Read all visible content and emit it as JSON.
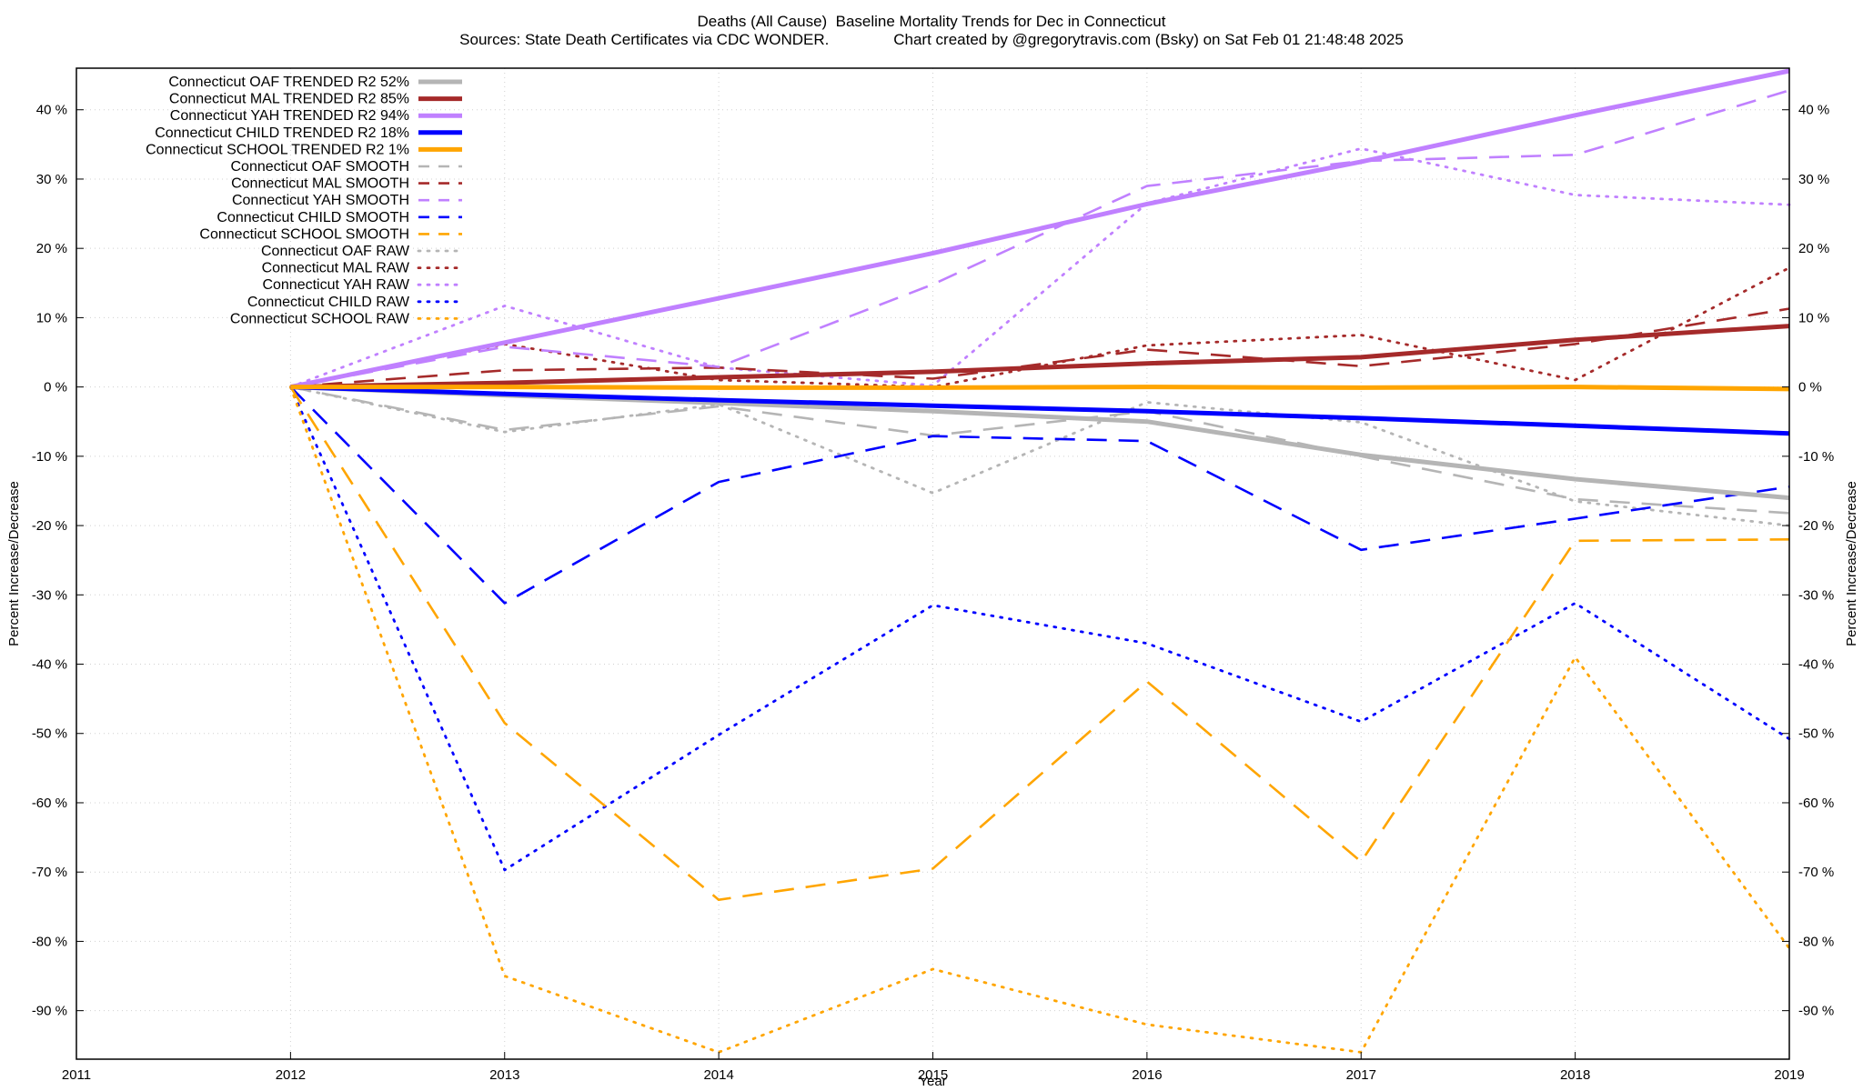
{
  "title": "Deaths (All Cause)  Baseline Mortality Trends for Dec in Connecticut",
  "subtitle": "Sources: State Death Certificates via CDC WONDER.               Chart created by @gregorytravis.com (Bsky) on Sat Feb 01 21:48:48 2025",
  "chart_data": {
    "type": "line",
    "xlabel": "Year",
    "ylabel": "Percent Increase/Decrease",
    "y2label": "Percent Increase/Decrease",
    "xlim": [
      2011,
      2019
    ],
    "ylim": [
      -97,
      46
    ],
    "xticks": [
      "2011",
      "2012",
      "2013",
      "2014",
      "2015",
      "2016",
      "2017",
      "2018",
      "2019"
    ],
    "yticks": [
      "40 %",
      "30 %",
      "20 %",
      "10 %",
      "0 %",
      "-10 %",
      "-20 %",
      "-30 %",
      "-40 %",
      "-50 %",
      "-60 %",
      "-70 %",
      "-80 %",
      "-90 %"
    ],
    "ytick_values": [
      40,
      30,
      20,
      10,
      0,
      -10,
      -20,
      -30,
      -40,
      -50,
      -60,
      -70,
      -80,
      -90
    ],
    "grid": true,
    "legend_position": "top-left",
    "x": [
      2012,
      2013,
      2014,
      2015,
      2016,
      2017,
      2018,
      2019
    ],
    "series": [
      {
        "name": "Connecticut OAF TRENDED R2  52%",
        "style": "solid",
        "color": "#b5b5b5",
        "values": [
          0,
          -1.2,
          -2.3,
          -3.5,
          -5.0,
          -9.8,
          -13.3,
          -16.0
        ]
      },
      {
        "name": "Connecticut MAL TRENDED R2  85%",
        "style": "solid",
        "color": "#a52a2a",
        "values": [
          0,
          0.6,
          1.4,
          2.2,
          3.4,
          4.3,
          6.8,
          8.8
        ]
      },
      {
        "name": "Connecticut YAH TRENDED R2  94%",
        "style": "solid",
        "color": "#c080ff",
        "values": [
          0,
          6.4,
          12.8,
          19.3,
          26.4,
          32.5,
          39.2,
          45.6
        ]
      },
      {
        "name": "Connecticut CHILD TRENDED R2  18%",
        "style": "solid",
        "color": "#0000ff",
        "values": [
          0,
          -1.0,
          -1.9,
          -2.7,
          -3.5,
          -4.5,
          -5.6,
          -6.7
        ]
      },
      {
        "name": "Connecticut SCHOOL TRENDED R2   1%",
        "style": "solid",
        "color": "#ffa500",
        "values": [
          0,
          0.0,
          -0.1,
          -0.1,
          0.0,
          -0.1,
          0.0,
          -0.3
        ]
      },
      {
        "name": "Connecticut OAF SMOOTH",
        "style": "dashed",
        "color": "#b5b5b5",
        "values": [
          0,
          -6.2,
          -2.8,
          -7.0,
          -3.5,
          -10.0,
          -16.2,
          -18.2
        ]
      },
      {
        "name": "Connecticut MAL SMOOTH",
        "style": "dashed",
        "color": "#a52a2a",
        "values": [
          0,
          2.4,
          2.8,
          1.2,
          5.4,
          3.0,
          6.2,
          11.3
        ]
      },
      {
        "name": "Connecticut YAH SMOOTH",
        "style": "dashed",
        "color": "#c080ff",
        "values": [
          0,
          5.8,
          2.9,
          14.8,
          29.0,
          32.6,
          33.5,
          42.8
        ]
      },
      {
        "name": "Connecticut CHILD SMOOTH",
        "style": "dashed",
        "color": "#0000ff",
        "values": [
          0,
          -31.2,
          -13.7,
          -7.1,
          -7.8,
          -23.5,
          -19.0,
          -14.4
        ]
      },
      {
        "name": "Connecticut SCHOOL SMOOTH",
        "style": "dashed",
        "color": "#ffa500",
        "values": [
          0,
          -48.5,
          -74.0,
          -69.5,
          -42.5,
          -68.5,
          -22.2,
          -22.0
        ]
      },
      {
        "name": "Connecticut OAF RAW",
        "style": "dotted",
        "color": "#b5b5b5",
        "values": [
          0,
          -6.5,
          -2.5,
          -15.3,
          -2.2,
          -5.1,
          -16.5,
          -20.0
        ]
      },
      {
        "name": "Connecticut MAL RAW",
        "style": "dotted",
        "color": "#a52a2a",
        "values": [
          0,
          6.2,
          1.0,
          0.0,
          6.0,
          7.5,
          1.0,
          17.2
        ]
      },
      {
        "name": "Connecticut YAH RAW",
        "style": "dotted",
        "color": "#c080ff",
        "values": [
          0,
          11.7,
          2.8,
          0.2,
          26.5,
          34.4,
          27.7,
          26.3
        ]
      },
      {
        "name": "Connecticut CHILD RAW",
        "style": "dotted",
        "color": "#0000ff",
        "values": [
          0,
          -69.7,
          -50.2,
          -31.5,
          -37.0,
          -48.3,
          -31.2,
          -50.8
        ]
      },
      {
        "name": "Connecticut SCHOOL RAW",
        "style": "dotted",
        "color": "#ffa500",
        "values": [
          0,
          -85.0,
          -96.0,
          -84.0,
          -92.0,
          -96.0,
          -39.0,
          -81.0
        ]
      }
    ]
  }
}
